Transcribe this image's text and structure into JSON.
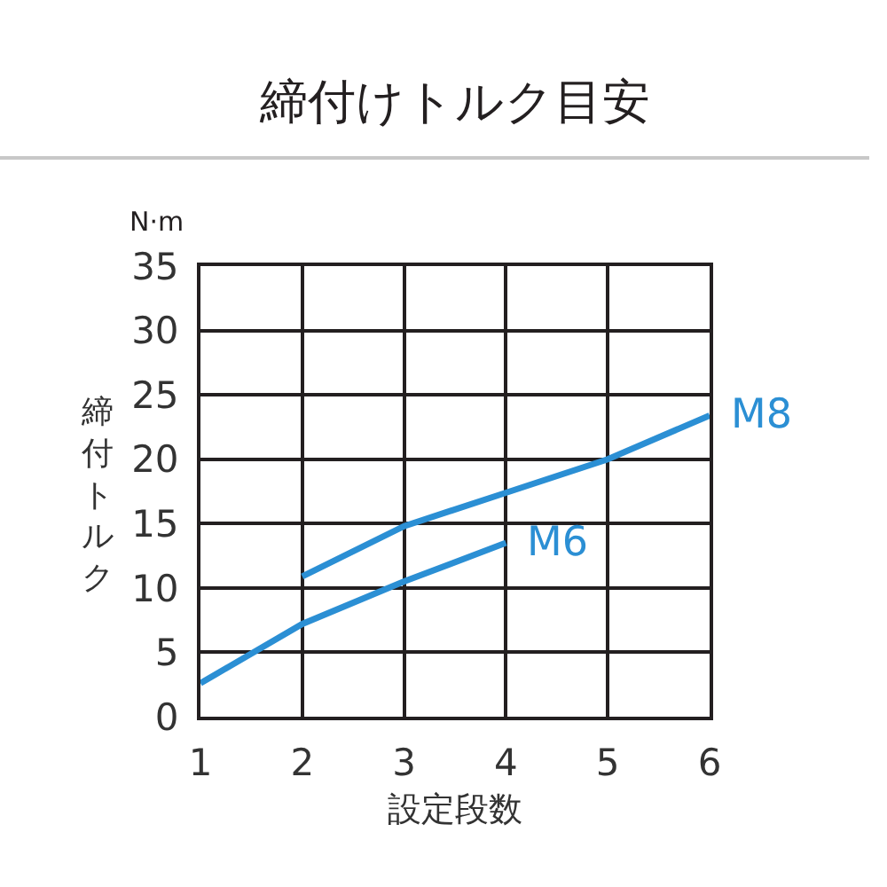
{
  "chart_data": {
    "type": "line",
    "title": "締付けトルク目安",
    "xlabel": "設定段数",
    "ylabel": "締付トルク",
    "annotations": [
      "N·m"
    ],
    "series": [
      {
        "name": "M8",
        "color": "#2b8fd4",
        "x": [
          2,
          3,
          4,
          5,
          6
        ],
        "values": [
          10.9,
          14.8,
          17.4,
          20,
          23.4
        ]
      },
      {
        "name": "M6",
        "color": "#2b8fd4",
        "x": [
          1,
          2,
          3,
          4
        ],
        "values": [
          2.6,
          7.2,
          10.5,
          13.5
        ]
      }
    ],
    "xlim": [
      1,
      6
    ],
    "xticks": [
      1,
      2,
      3,
      4,
      5,
      6
    ],
    "ylim": [
      0,
      35
    ],
    "yticks": [
      0,
      5,
      10,
      15,
      20,
      25,
      30,
      35
    ],
    "grid": true,
    "legend": false,
    "marker": "none",
    "line_style": "solid"
  }
}
